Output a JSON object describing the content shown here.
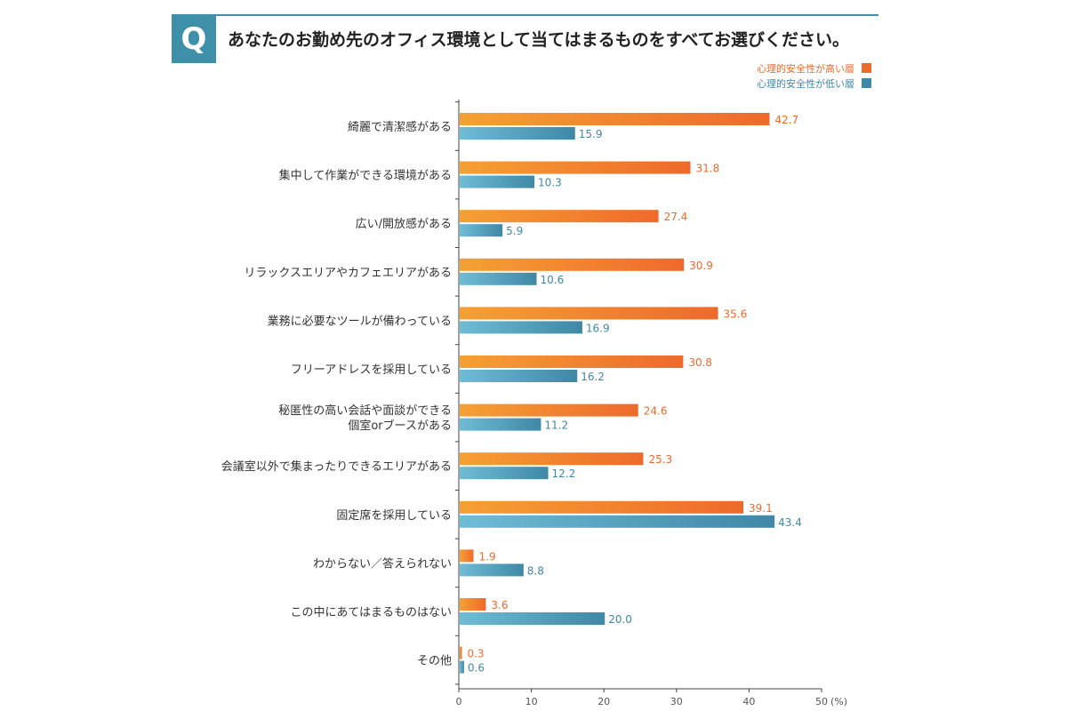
{
  "header": {
    "badge": "Q",
    "question": "あなたのお勤め先のオフィス環境として当てはまるものをすべてお選びください。"
  },
  "colors": {
    "high": "#ee6a2c",
    "high_light": "#f5a033",
    "low": "#3f88a6",
    "low_light": "#6fbcd6",
    "badge": "#3e8fa8"
  },
  "chart_data": {
    "type": "bar",
    "orientation": "horizontal",
    "categories": [
      "綺麗で清潔感がある",
      "集中して作業ができる環境がある",
      "広い/開放感がある",
      "リラックスエリアやカフェエリアがある",
      "業務に必要なツールが備わっている",
      "フリーアドレスを採用している",
      "秘匿性の高い会話や面談ができる\n個室orブースがある",
      "会議室以外で集まったりできるエリアがある",
      "固定席を採用している",
      "わからない／答えられない",
      "この中にあてはまるものはない",
      "その他"
    ],
    "series": [
      {
        "name": "心理的安全性が高い層",
        "values": [
          42.7,
          31.8,
          27.4,
          30.9,
          35.6,
          30.8,
          24.6,
          25.3,
          39.1,
          1.9,
          3.6,
          0.3
        ],
        "labels": [
          "42.7",
          "31.8",
          "27.4",
          "30.9",
          "35.6",
          "30.8",
          "24.6",
          "25.3",
          "39.1",
          "1.9",
          "3.6",
          "0.3"
        ]
      },
      {
        "name": "心理的安全性が低い層",
        "values": [
          15.9,
          10.3,
          5.9,
          10.6,
          16.9,
          16.2,
          11.2,
          12.2,
          43.4,
          8.8,
          20.0,
          0.6
        ],
        "labels": [
          "15.9",
          "10.3",
          "5.9",
          "10.6",
          "16.9",
          "16.2",
          "11.2",
          "12.2",
          "43.4",
          "8.8",
          "20.0",
          "0.6"
        ]
      }
    ],
    "xlim": [
      0,
      50
    ],
    "xticks": [
      "0",
      "10",
      "20",
      "30",
      "40",
      "50"
    ],
    "xunit": "(%)",
    "legend_position": "top-right",
    "grid": false
  }
}
